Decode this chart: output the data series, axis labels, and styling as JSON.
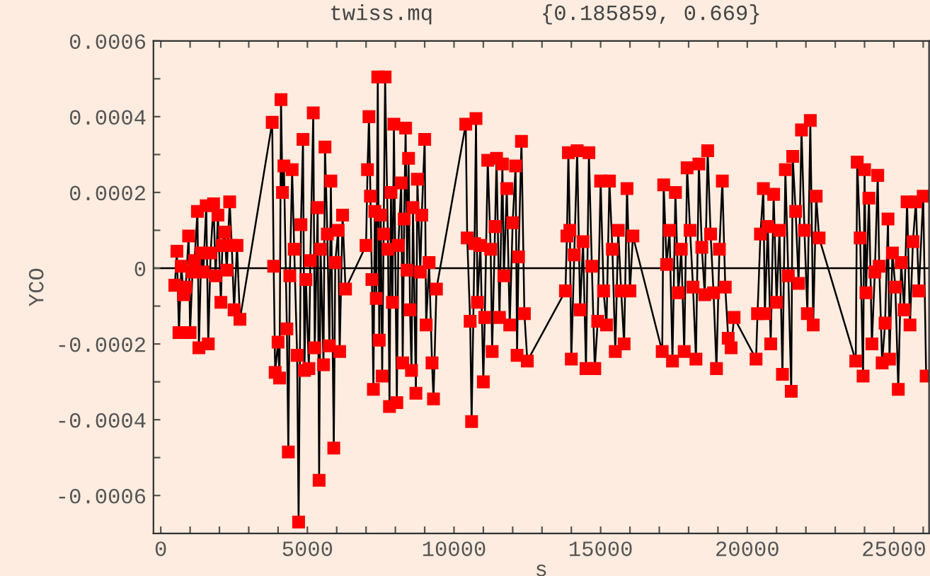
{
  "chart_data": {
    "type": "line",
    "title": "twiss.mq",
    "subtitle": "{0.185859, 0.669}",
    "xlabel": "s",
    "ylabel": "YCO",
    "xlim": [
      -250,
      26200
    ],
    "ylim": [
      -0.0007,
      0.0006
    ],
    "xticks": [
      0,
      {
        "value": 1000,
        "label": null
      },
      {
        "value": 2000,
        "label": null
      },
      {
        "value": 3000,
        "label": null
      },
      {
        "value": 4000,
        "label": null
      },
      5000,
      {
        "value": 6000,
        "label": null
      },
      {
        "value": 7000,
        "label": null
      },
      {
        "value": 8000,
        "label": null
      },
      {
        "value": 9000,
        "label": null
      },
      10000,
      {
        "value": 11000,
        "label": null
      },
      {
        "value": 12000,
        "label": null
      },
      {
        "value": 13000,
        "label": null
      },
      {
        "value": 14000,
        "label": null
      },
      15000,
      {
        "value": 16000,
        "label": null
      },
      {
        "value": 17000,
        "label": null
      },
      {
        "value": 18000,
        "label": null
      },
      {
        "value": 19000,
        "label": null
      },
      20000,
      {
        "value": 21000,
        "label": null
      },
      {
        "value": 22000,
        "label": null
      },
      {
        "value": 23000,
        "label": null
      },
      {
        "value": 24000,
        "label": null
      },
      25000,
      {
        "value": 26000,
        "label": null
      }
    ],
    "yticks": [
      {
        "value": -0.0006,
        "label": "-0.0006"
      },
      {
        "value": -0.0005,
        "label": null
      },
      {
        "value": -0.0004,
        "label": "-0.0004"
      },
      {
        "value": -0.0003,
        "label": null
      },
      {
        "value": -0.0002,
        "label": "-0.0002"
      },
      {
        "value": -0.0001,
        "label": null
      },
      0,
      {
        "value": 0.0001,
        "label": null
      },
      {
        "value": 0.0002,
        "label": "0.0002"
      },
      {
        "value": 0.0003,
        "label": null
      },
      {
        "value": 0.0004,
        "label": "0.0004"
      },
      {
        "value": 0.0005,
        "label": null
      },
      {
        "value": 0.0006,
        "label": "0.0006"
      }
    ],
    "ref_lines": [
      {
        "axis": "y",
        "value": 0,
        "color": "#000000"
      }
    ],
    "marker": "square",
    "line_style": "solid",
    "grid": false,
    "legend": false,
    "series": [
      {
        "color": "#ff0000",
        "x": [
          480,
          550,
          620,
          700,
          780,
          850,
          950,
          1000,
          1080,
          1150,
          1250,
          1300,
          1380,
          1450,
          1550,
          1620,
          1700,
          1800,
          1870,
          1950,
          2050,
          2100,
          2180,
          2250,
          2350,
          2420,
          2500,
          2600,
          2700,
          3800,
          3850,
          3900,
          4000,
          4050,
          4100,
          4150,
          4200,
          4300,
          4350,
          4400,
          4480,
          4550,
          4650,
          4700,
          4780,
          4850,
          4900,
          4950,
          5050,
          5100,
          5200,
          5250,
          5350,
          5400,
          5450,
          5550,
          5600,
          5680,
          5750,
          5800,
          5900,
          5950,
          6050,
          6100,
          6200,
          6300,
          7000,
          7050,
          7100,
          7150,
          7200,
          7250,
          7300,
          7350,
          7400,
          7450,
          7500,
          7550,
          7600,
          7650,
          7750,
          7800,
          7850,
          7900,
          7950,
          8050,
          8100,
          8200,
          8250,
          8300,
          8350,
          8400,
          8450,
          8500,
          8550,
          8600,
          8700,
          8750,
          8850,
          8900,
          9000,
          9050,
          9150,
          9250,
          9300,
          9400,
          10400,
          10450,
          10550,
          10600,
          10700,
          10750,
          10800,
          10900,
          11000,
          11050,
          11150,
          11250,
          11300,
          11400,
          11450,
          11550,
          11650,
          11700,
          11800,
          11900,
          12000,
          12100,
          12150,
          12200,
          12300,
          12400,
          12500,
          13800,
          13850,
          13900,
          13950,
          14000,
          14100,
          14200,
          14300,
          14400,
          14500,
          14600,
          14700,
          14800,
          14900,
          15000,
          15100,
          15200,
          15300,
          15400,
          15500,
          15600,
          15700,
          15800,
          15900,
          16000,
          16100,
          17100,
          17150,
          17250,
          17350,
          17450,
          17550,
          17650,
          17750,
          17850,
          17950,
          18050,
          18150,
          18250,
          18350,
          18450,
          18550,
          18650,
          18750,
          18850,
          18950,
          19050,
          19150,
          19250,
          19350,
          19450,
          19550,
          20300,
          20350,
          20450,
          20550,
          20600,
          20700,
          20800,
          20900,
          21000,
          21100,
          21200,
          21300,
          21400,
          21500,
          21550,
          21650,
          21750,
          21850,
          21950,
          22050,
          22150,
          22250,
          22350,
          22450,
          23700,
          23750,
          23850,
          23950,
          24000,
          24050,
          24150,
          24250,
          24350,
          24450,
          24500,
          24600,
          24700,
          24800,
          24850,
          24950,
          25050,
          25150,
          25250,
          25350,
          25450,
          25550,
          25650,
          25750,
          25850,
          26000,
          26100
        ],
        "values": [
          -4.5e-05,
          4.5e-05,
          -0.00017,
          5e-06,
          -7e-05,
          -5e-05,
          8.5e-05,
          -0.00017,
          -1e-05,
          2e-05,
          0.00015,
          -0.00021,
          4e-05,
          -1e-05,
          0.000165,
          -0.0002,
          4e-05,
          0.00017,
          -2e-05,
          0.00014,
          -9e-05,
          6e-05,
          9.5e-05,
          -5e-06,
          0.000175,
          6e-05,
          -0.00011,
          6e-05,
          -0.000135,
          0.000385,
          5e-06,
          -0.000275,
          -0.000195,
          -0.00029,
          0.000445,
          0.0002,
          0.00027,
          -0.00016,
          -0.000485,
          -2e-05,
          0.00026,
          5e-05,
          -0.00023,
          -0.00067,
          0.000115,
          0.00034,
          -0.00027,
          -3e-05,
          -0.000265,
          2e-05,
          0.00041,
          -0.00021,
          0.00016,
          -0.00056,
          5e-05,
          -0.000255,
          0.00032,
          9e-05,
          -0.000205,
          0.00023,
          -0.000475,
          1.5e-05,
          0.0001,
          -0.00022,
          0.00014,
          -5.5e-05,
          6e-05,
          0.00026,
          0.0004,
          0.00019,
          -3e-05,
          -0.00032,
          0.00015,
          -8e-05,
          0.000505,
          -0.00019,
          0.00014,
          -0.000285,
          9e-05,
          0.000505,
          5e-05,
          -0.000365,
          0.0002,
          -9e-05,
          0.00038,
          -0.000355,
          6e-05,
          0.000225,
          -0.00025,
          0.00013,
          0.00037,
          -5e-06,
          0.00029,
          -0.00011,
          -0.00027,
          0.00016,
          -0.00033,
          0.000235,
          -1e-05,
          0.00014,
          0.00034,
          -0.00015,
          1.5e-05,
          -0.00025,
          -0.000345,
          -5.5e-05,
          0.00038,
          8e-05,
          -0.00014,
          -0.000405,
          6.5e-05,
          0.000395,
          -9e-05,
          6e-05,
          -0.0003,
          -0.00013,
          0.000285,
          5e-05,
          -0.00022,
          0.00011,
          0.00029,
          -0.00013,
          0.000275,
          -2e-05,
          0.00021,
          -0.00015,
          0.00012,
          0.00027,
          -0.00023,
          3e-05,
          0.000335,
          -0.00012,
          -0.000245,
          -6e-05,
          8.5e-05,
          0.000305,
          0.0001,
          -0.00024,
          3.5e-05,
          0.00031,
          -0.00011,
          7e-05,
          -0.000265,
          0.000305,
          5e-06,
          -0.000265,
          -0.00014,
          0.00023,
          -6e-05,
          -0.00015,
          0.00023,
          5e-05,
          -0.00022,
          0.0001,
          -6e-05,
          -0.0002,
          0.00021,
          -6e-05,
          8.5e-05,
          -0.00022,
          0.00022,
          1e-05,
          0.0001,
          -0.000245,
          0.0002,
          -6.5e-05,
          5e-05,
          -0.00022,
          0.000265,
          0.0001,
          -5e-05,
          -0.00024,
          0.000275,
          5.5e-05,
          -7e-05,
          0.00031,
          9e-05,
          -6.5e-05,
          -0.000265,
          5e-05,
          0.00023,
          -5e-05,
          -0.000185,
          -0.00021,
          -0.00013,
          -0.00024,
          -0.00012,
          9e-05,
          0.00021,
          -0.00012,
          0.00011,
          -0.0002,
          0.000195,
          -9e-05,
          0.0001,
          -0.00028,
          0.00026,
          -2e-05,
          -0.000325,
          0.000295,
          0.00015,
          -4e-05,
          0.000365,
          0.0001,
          -0.00012,
          0.00039,
          -0.00015,
          0.00019,
          8e-05,
          -0.000245,
          0.00028,
          8e-05,
          -0.000285,
          0.00026,
          -6.5e-05,
          0.000185,
          -0.0002,
          -1e-05,
          0.000245,
          5e-06,
          -0.00025,
          -0.000145,
          0.00013,
          -0.00024,
          4e-05,
          -5e-05,
          -0.00032,
          1.5e-05,
          -0.00011,
          0.000175,
          -0.00015,
          7e-05,
          0.000175,
          -6e-05,
          0.00019,
          -0.000285
        ]
      }
    ]
  }
}
